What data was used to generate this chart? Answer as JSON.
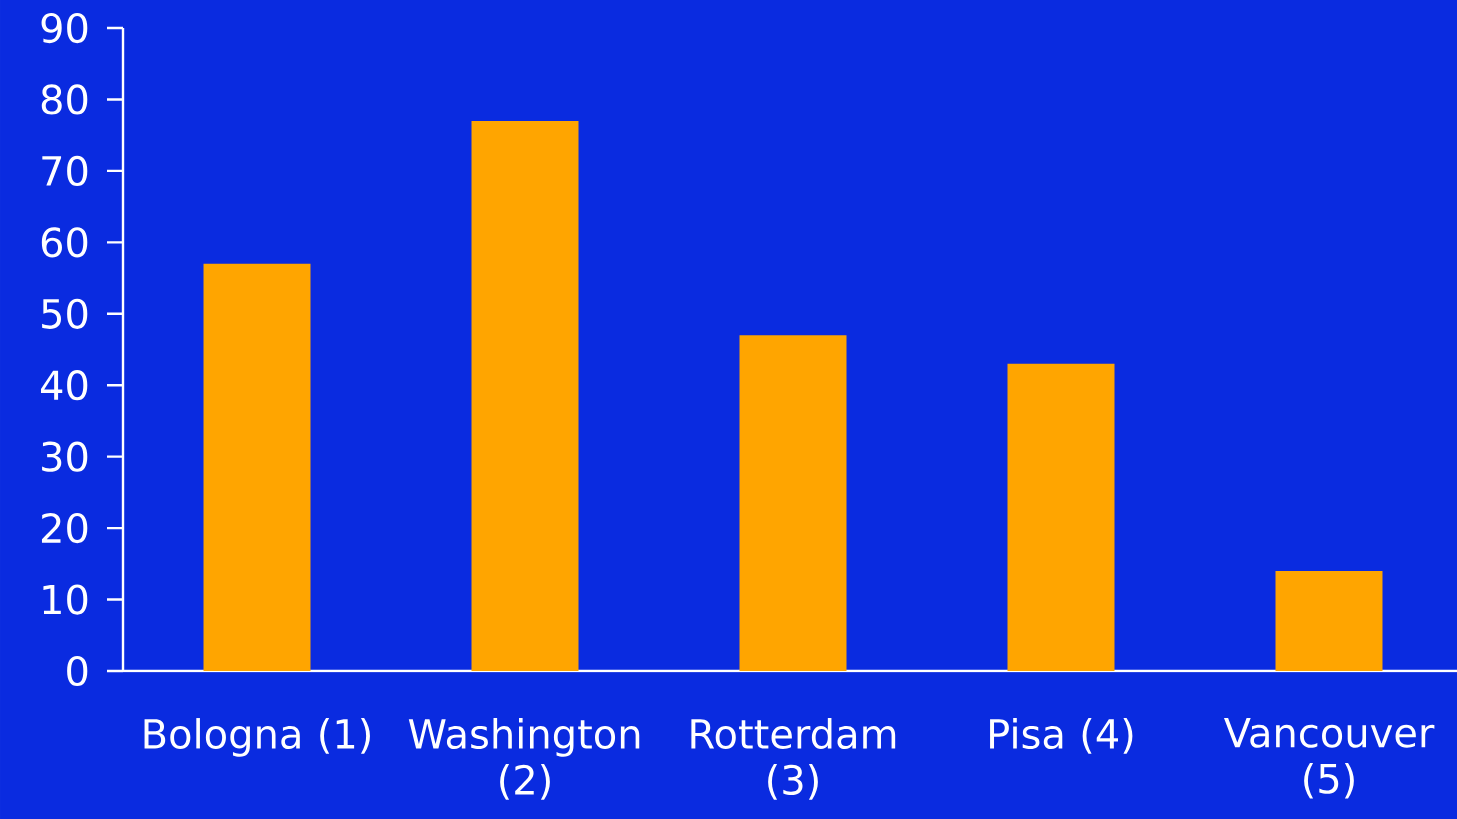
{
  "chart_data": {
    "type": "bar",
    "categories": [
      "Bologna (1)",
      "Washington (2)",
      "Rotterdam (3)",
      "Pisa (4)",
      "Vancouver (5)"
    ],
    "values": [
      57,
      77,
      47,
      43,
      14
    ],
    "color": "#ffa500",
    "ylim": [
      0,
      90
    ],
    "yticks": [
      0,
      10,
      20,
      30,
      40,
      50,
      60,
      70,
      80,
      90
    ]
  }
}
